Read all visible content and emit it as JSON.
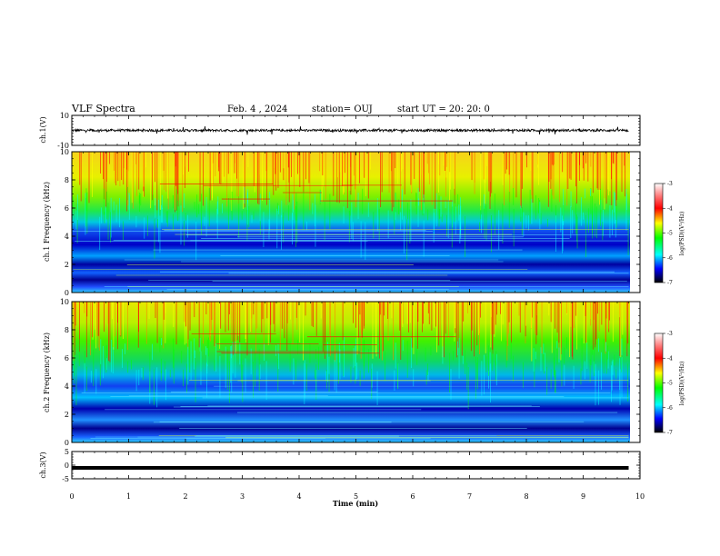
{
  "header": {
    "title": "VLF Spectra",
    "date": "Feb. 4 , 2024",
    "station": "station= OUJ",
    "start": "start  UT =  20: 20: 0"
  },
  "chart_data": [
    {
      "type": "line",
      "ylabel": "ch.1(V)",
      "ylim": [
        -10,
        10
      ],
      "y_ticks": [
        "10",
        "-10"
      ],
      "description_series": {
        "approx_level": 0,
        "spike_range": [
          -3,
          3
        ]
      }
    },
    {
      "type": "heatmap",
      "ylabel": "ch.1  Frequency  (kHz)",
      "ylim": [
        0,
        10
      ],
      "y_ticks": [
        "0",
        "2",
        "4",
        "6",
        "8",
        "10"
      ],
      "colorbar": {
        "label": "log(PSD)(V²/Hz)",
        "range": [
          -7,
          -3
        ],
        "ticks": [
          "-3",
          "-4",
          "-5",
          "-6",
          "-7"
        ]
      }
    },
    {
      "type": "heatmap",
      "ylabel": "ch.2  Frequency  (kHz)",
      "ylim": [
        0,
        10
      ],
      "y_ticks": [
        "0",
        "2",
        "4",
        "6",
        "8",
        "10"
      ],
      "colorbar": {
        "label": "log(PSD)(V²/Hz)",
        "range": [
          -7,
          -3
        ],
        "ticks": [
          "-3",
          "-4",
          "-5",
          "-6",
          "-7"
        ]
      }
    },
    {
      "type": "line",
      "ylabel": "ch.3(V)",
      "ylim": [
        -5,
        5
      ],
      "y_ticks": [
        "5",
        "0",
        "-5"
      ],
      "series": [
        {
          "values": [
            -1,
            -1
          ]
        }
      ]
    }
  ],
  "x_axis": {
    "label": "Time  (min)",
    "range": [
      0,
      10
    ],
    "ticks": [
      "0",
      "1",
      "2",
      "3",
      "4",
      "5",
      "6",
      "7",
      "8",
      "9",
      "10"
    ],
    "data_end": 9.8
  },
  "colors": {
    "dark_blue": "#00008b",
    "blue": "#0000ff",
    "cyan": "#00ffff",
    "green": "#00ff00",
    "yellow": "#ffff00",
    "red": "#ff0000"
  }
}
